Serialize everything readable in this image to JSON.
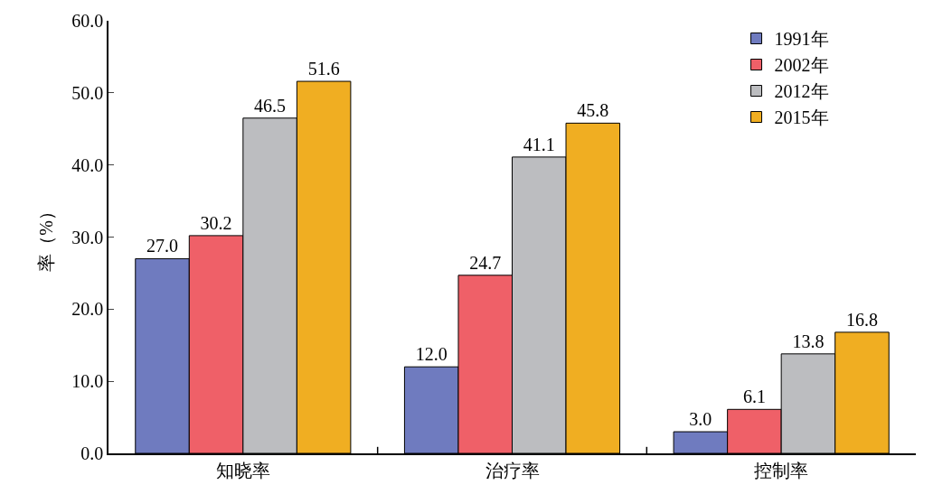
{
  "chart_data": {
    "type": "bar",
    "ylabel": "率（%）",
    "categories": [
      "知晓率",
      "治疗率",
      "控制率"
    ],
    "series": [
      {
        "name": "1991年",
        "color": "#6f7bbf",
        "values": [
          27.0,
          12.0,
          3.0
        ],
        "value_labels": [
          "27.0",
          "12.0",
          "3.0"
        ]
      },
      {
        "name": "2002年",
        "color": "#ef6068",
        "values": [
          30.2,
          24.7,
          6.1
        ],
        "value_labels": [
          "30.2",
          "24.7",
          "6.1"
        ]
      },
      {
        "name": "2012年",
        "color": "#bcbdc0",
        "values": [
          46.5,
          41.1,
          13.8
        ],
        "value_labels": [
          "46.5",
          "41.1",
          "13.8"
        ]
      },
      {
        "name": "2015年",
        "color": "#f0ae22",
        "values": [
          51.6,
          45.8,
          16.8
        ],
        "value_labels": [
          "51.6",
          "45.8",
          "16.8"
        ]
      }
    ],
    "ylim": [
      0,
      60
    ],
    "yticks": [
      {
        "value": 0,
        "label": "0.0"
      },
      {
        "value": 10,
        "label": "10.0"
      },
      {
        "value": 20,
        "label": "20.0"
      },
      {
        "value": 30,
        "label": "30.0"
      },
      {
        "value": 40,
        "label": "40.0"
      },
      {
        "value": 50,
        "label": "50.0"
      },
      {
        "value": 60,
        "label": "60.0"
      }
    ],
    "legend": "top right"
  }
}
